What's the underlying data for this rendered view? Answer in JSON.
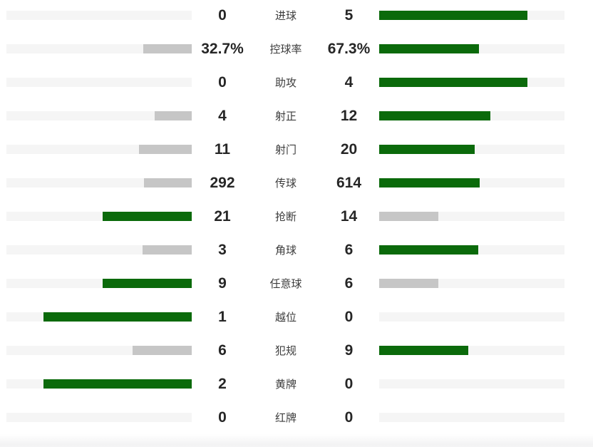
{
  "colors": {
    "leading_bar": "#0b6a0b",
    "trailing_bar": "#c6c6c6",
    "bar_track": "#f5f5f5",
    "value_text": "#262626",
    "label_text": "#3c3c3c"
  },
  "chart_data": {
    "type": "bar",
    "orientation": "horizontal-paired",
    "title": "",
    "legend_position": "none",
    "grid": false,
    "bar_rule": "fill_percent = 80 * value / (home_value + away_value); higher side colored green, lower side gray, zero = empty track",
    "categories": [
      "进球",
      "控球率",
      "助攻",
      "射正",
      "射门",
      "传球",
      "抢断",
      "角球",
      "任意球",
      "越位",
      "犯规",
      "黄牌",
      "红牌"
    ],
    "series": [
      {
        "name": "home",
        "side": "left",
        "values": [
          "0",
          "32.7%",
          "0",
          "4",
          "11",
          "292",
          "21",
          "3",
          "9",
          "1",
          "6",
          "2",
          "0"
        ]
      },
      {
        "name": "away",
        "side": "right",
        "values": [
          "5",
          "67.3%",
          "4",
          "12",
          "20",
          "614",
          "14",
          "6",
          "6",
          "0",
          "9",
          "0",
          "0"
        ]
      }
    ],
    "rows": [
      {
        "label": "进球",
        "home": "0",
        "away": "5",
        "home_fill": 0,
        "away_fill": 80,
        "home_color": "gray",
        "away_color": "green"
      },
      {
        "label": "控球率",
        "home": "32.7%",
        "away": "67.3%",
        "home_fill": 26.2,
        "away_fill": 53.8,
        "home_color": "gray",
        "away_color": "green"
      },
      {
        "label": "助攻",
        "home": "0",
        "away": "4",
        "home_fill": 0,
        "away_fill": 80,
        "home_color": "gray",
        "away_color": "green"
      },
      {
        "label": "射正",
        "home": "4",
        "away": "12",
        "home_fill": 20,
        "away_fill": 60,
        "home_color": "gray",
        "away_color": "green"
      },
      {
        "label": "射门",
        "home": "11",
        "away": "20",
        "home_fill": 28.4,
        "away_fill": 51.6,
        "home_color": "gray",
        "away_color": "green"
      },
      {
        "label": "传球",
        "home": "292",
        "away": "614",
        "home_fill": 25.8,
        "away_fill": 54.2,
        "home_color": "gray",
        "away_color": "green"
      },
      {
        "label": "抢断",
        "home": "21",
        "away": "14",
        "home_fill": 48,
        "away_fill": 32,
        "home_color": "green",
        "away_color": "gray"
      },
      {
        "label": "角球",
        "home": "3",
        "away": "6",
        "home_fill": 26.7,
        "away_fill": 53.3,
        "home_color": "gray",
        "away_color": "green"
      },
      {
        "label": "任意球",
        "home": "9",
        "away": "6",
        "home_fill": 48,
        "away_fill": 32,
        "home_color": "green",
        "away_color": "gray"
      },
      {
        "label": "越位",
        "home": "1",
        "away": "0",
        "home_fill": 80,
        "away_fill": 0,
        "home_color": "green",
        "away_color": "gray"
      },
      {
        "label": "犯规",
        "home": "6",
        "away": "9",
        "home_fill": 32,
        "away_fill": 48,
        "home_color": "gray",
        "away_color": "green"
      },
      {
        "label": "黄牌",
        "home": "2",
        "away": "0",
        "home_fill": 80,
        "away_fill": 0,
        "home_color": "green",
        "away_color": "gray"
      },
      {
        "label": "红牌",
        "home": "0",
        "away": "0",
        "home_fill": 0,
        "away_fill": 0,
        "home_color": "gray",
        "away_color": "gray"
      }
    ]
  }
}
